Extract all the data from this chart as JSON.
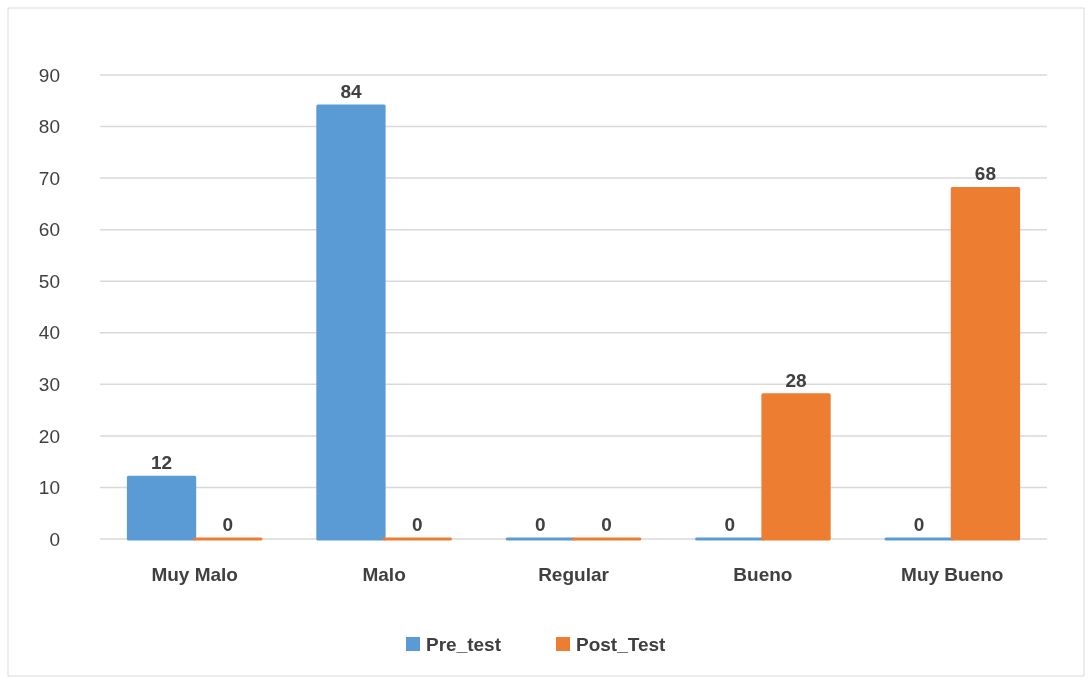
{
  "chart_data": {
    "type": "bar",
    "categories": [
      "Muy Malo",
      "Malo",
      "Regular",
      "Bueno",
      "Muy Bueno"
    ],
    "series": [
      {
        "name": "Pre_test",
        "color": "#5b9bd5",
        "values": [
          12,
          84,
          0,
          0,
          0
        ]
      },
      {
        "name": "Post_Test",
        "color": "#ed7d31",
        "values": [
          0,
          0,
          0,
          28,
          68
        ]
      }
    ],
    "ylim": [
      0,
      90
    ],
    "yticks": [
      0,
      10,
      20,
      30,
      40,
      50,
      60,
      70,
      80,
      90
    ],
    "grid": "y",
    "legend": "bottom",
    "data_labels": true
  }
}
